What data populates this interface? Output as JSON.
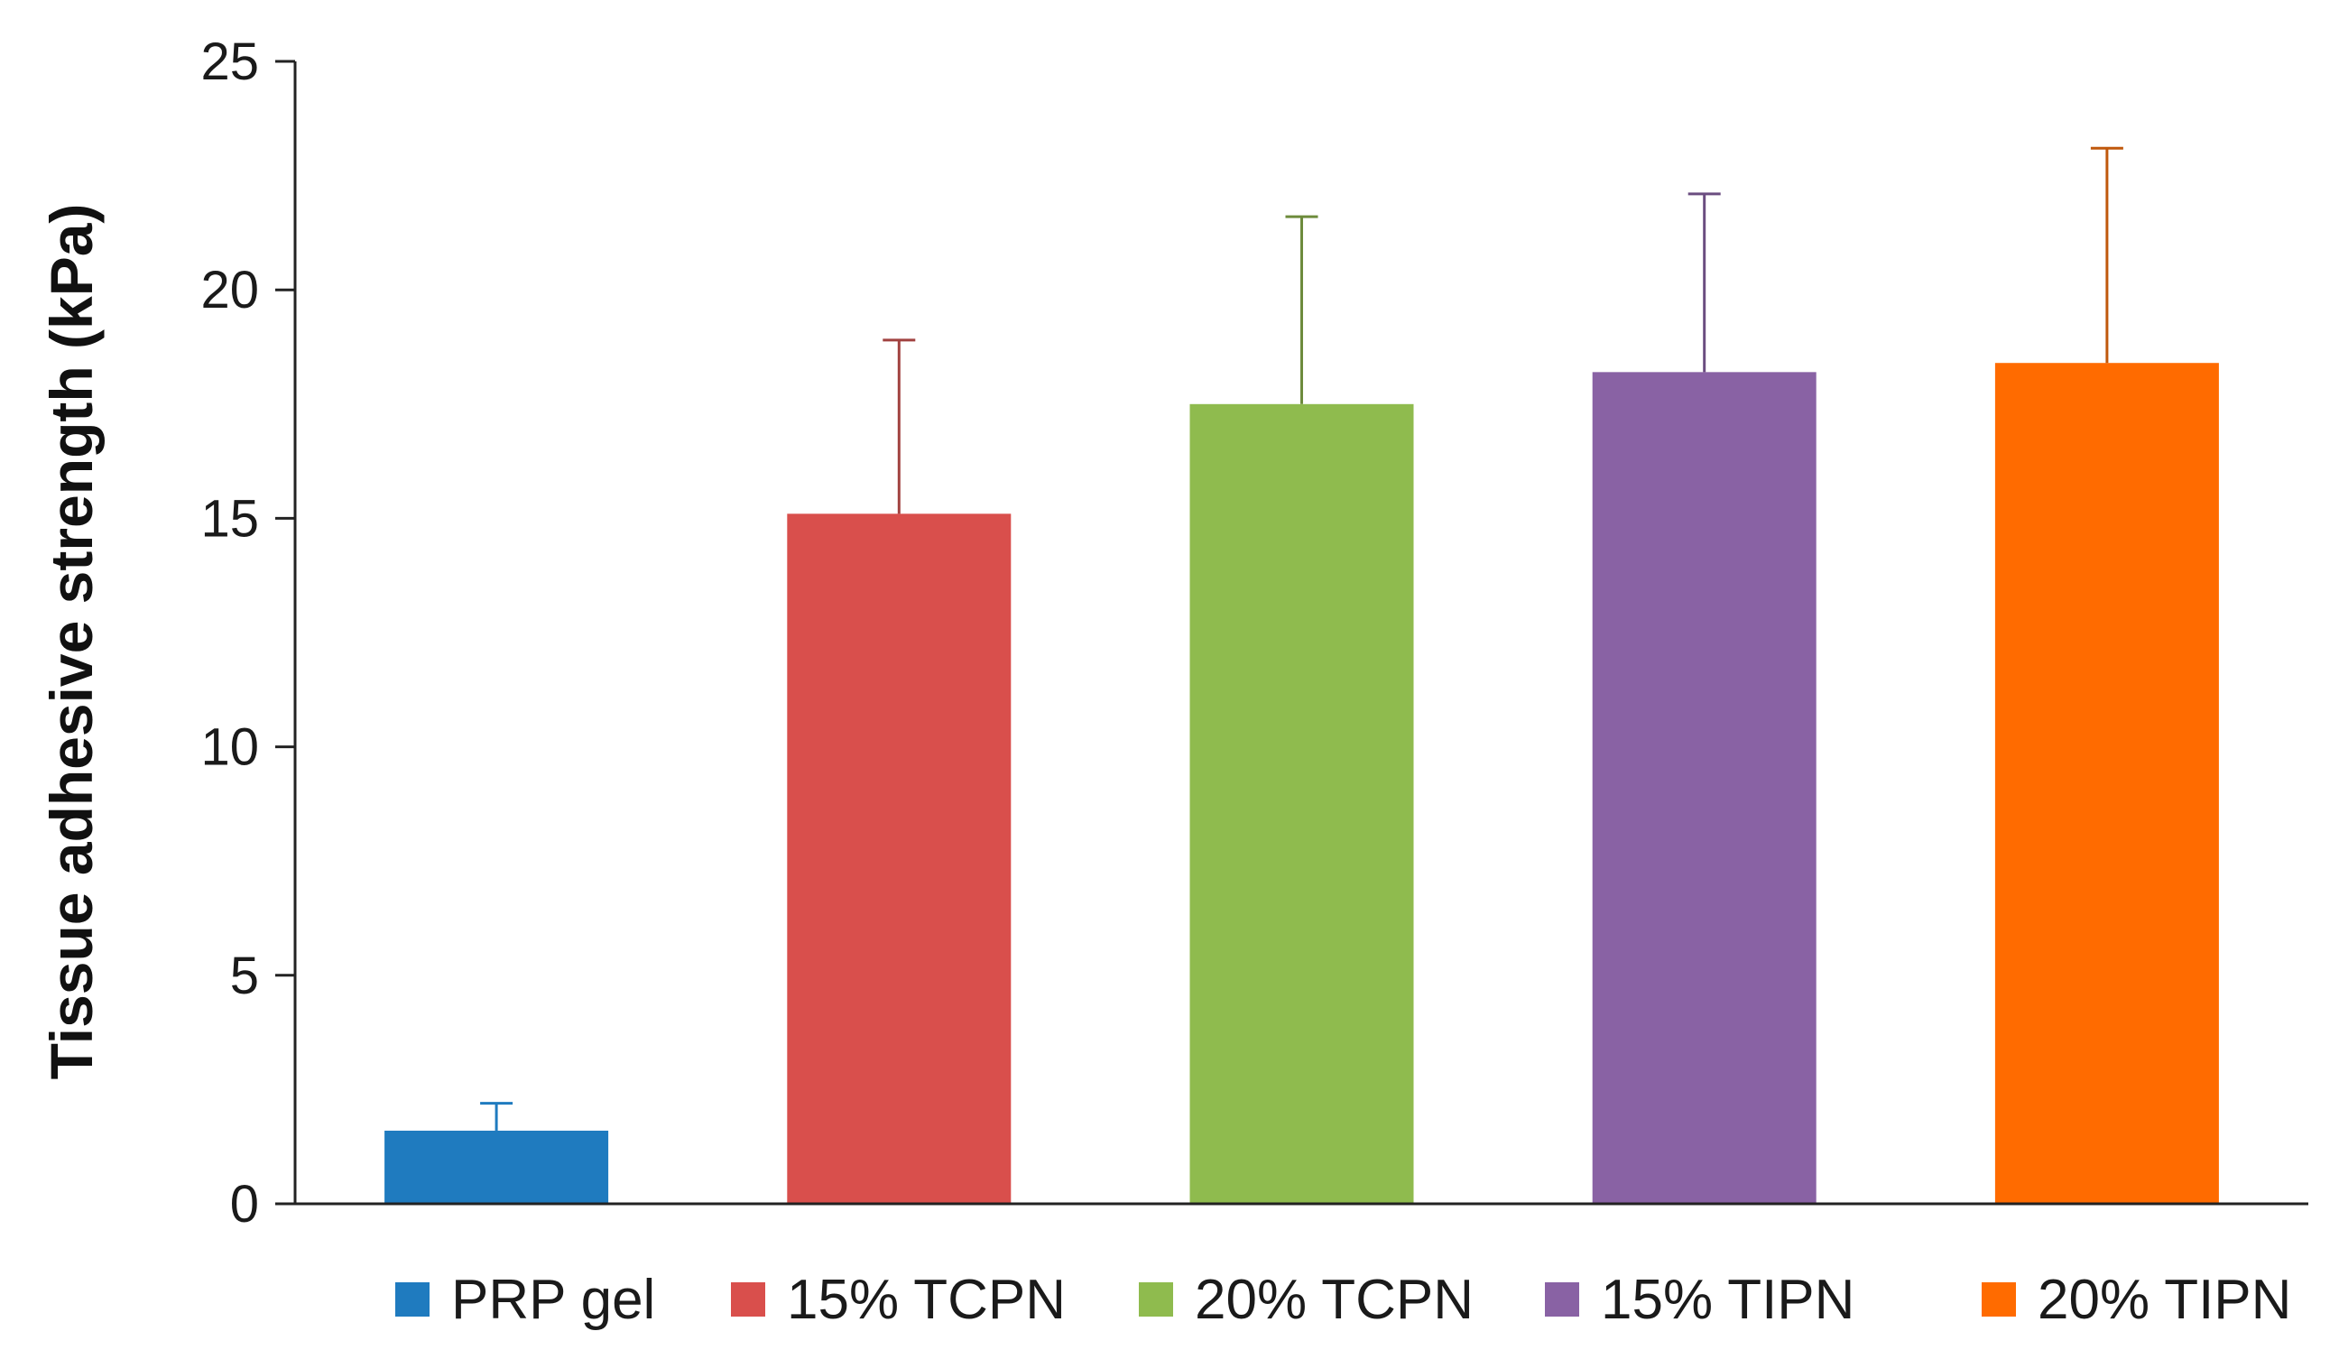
{
  "chart_data": {
    "type": "bar",
    "title": "",
    "xlabel": "",
    "ylabel": "Tissue adhesive strength (kPa)",
    "ylim": [
      0,
      25
    ],
    "yticks": [
      0,
      5,
      10,
      15,
      20,
      25
    ],
    "grid": false,
    "legend_position": "bottom",
    "categories": [
      "PRP gel",
      "15% TCPN",
      "20% TCPN",
      "15% TIPN",
      "20% TIPN"
    ],
    "values": [
      1.6,
      15.1,
      17.5,
      18.2,
      18.4
    ],
    "error": [
      0.6,
      3.8,
      4.1,
      3.9,
      4.7
    ],
    "colors": [
      "#1f7bbf",
      "#d94f4c",
      "#8fbb4e",
      "#8962a4",
      "#ff6b00"
    ],
    "error_colors": [
      "#1f7bbf",
      "#a14240",
      "#6d8b3c",
      "#6b4d80",
      "#c0580c"
    ]
  }
}
